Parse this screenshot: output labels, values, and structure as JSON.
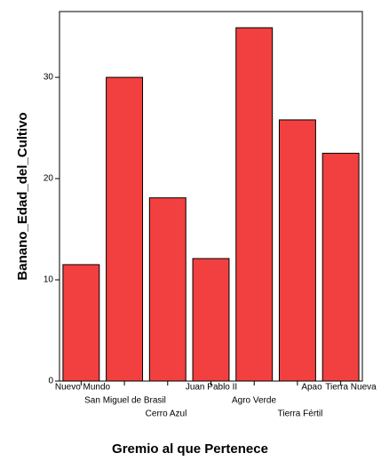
{
  "chart_data": {
    "type": "bar",
    "x_label": "Gremio al que Pertenece",
    "y_label": "Banano_Edad_del_Cultivo",
    "categories": [
      "Nuevo Mundo",
      "San Miguel de Brasil",
      "Cerro Azul",
      "Juan Pablo II",
      "Agro Verde",
      "Apao",
      "Tierra Fértil",
      "Tierra Nueva"
    ],
    "values": [
      11.5,
      30,
      18.1,
      12.1,
      34.9,
      null,
      25.8,
      22.5
    ],
    "color": "#f23f3f",
    "ylim": [
      0,
      36.5
    ],
    "yticks": [
      0,
      10,
      20,
      30
    ],
    "grid": false
  }
}
